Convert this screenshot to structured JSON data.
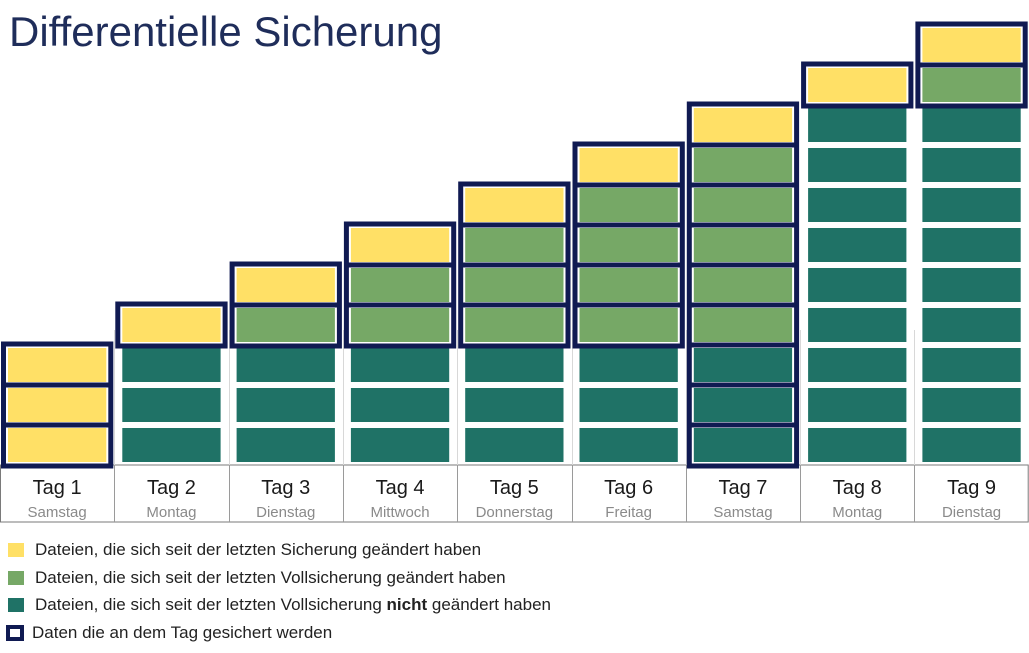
{
  "title": "Differentielle Sicherung",
  "colors": {
    "changed_since_last_backup": "#ffe066",
    "changed_since_full_backup": "#76a866",
    "unchanged_since_full_backup": "#1f7266",
    "saved_frame": "#101a52"
  },
  "days": [
    {
      "label": "Tag 1",
      "weekday": "Samstag",
      "new": 3,
      "changed": 0,
      "unchanged": 0,
      "saved": "all"
    },
    {
      "label": "Tag 2",
      "weekday": "Montag",
      "new": 1,
      "changed": 0,
      "unchanged": 3,
      "saved": "new+changed"
    },
    {
      "label": "Tag 3",
      "weekday": "Dienstag",
      "new": 1,
      "changed": 1,
      "unchanged": 3,
      "saved": "new+changed"
    },
    {
      "label": "Tag 4",
      "weekday": "Mittwoch",
      "new": 1,
      "changed": 2,
      "unchanged": 3,
      "saved": "new+changed"
    },
    {
      "label": "Tag 5",
      "weekday": "Donnerstag",
      "new": 1,
      "changed": 3,
      "unchanged": 3,
      "saved": "new+changed"
    },
    {
      "label": "Tag 6",
      "weekday": "Freitag",
      "new": 1,
      "changed": 4,
      "unchanged": 3,
      "saved": "new+changed"
    },
    {
      "label": "Tag 7",
      "weekday": "Samstag",
      "new": 1,
      "changed": 5,
      "unchanged": 3,
      "saved": "all"
    },
    {
      "label": "Tag 8",
      "weekday": "Montag",
      "new": 1,
      "changed": 0,
      "unchanged": 9,
      "saved": "new+changed"
    },
    {
      "label": "Tag 9",
      "weekday": "Dienstag",
      "new": 1,
      "changed": 1,
      "unchanged": 9,
      "saved": "new+changed"
    }
  ],
  "legend": [
    {
      "color_key": "changed_since_last_backup",
      "text": "Dateien, die sich seit der letzten Sicherung geändert haben"
    },
    {
      "color_key": "changed_since_full_backup",
      "text": "Dateien, die sich seit der letzten Vollsicherung geändert haben"
    },
    {
      "color_key": "unchanged_since_full_backup",
      "text_before": "Dateien, die sich seit der letzten Vollsicherung ",
      "text_bold": "nicht",
      "text_after": " geändert haben"
    },
    {
      "color_key": "saved_frame",
      "text": "Daten die an dem Tag gesichert werden"
    }
  ]
}
